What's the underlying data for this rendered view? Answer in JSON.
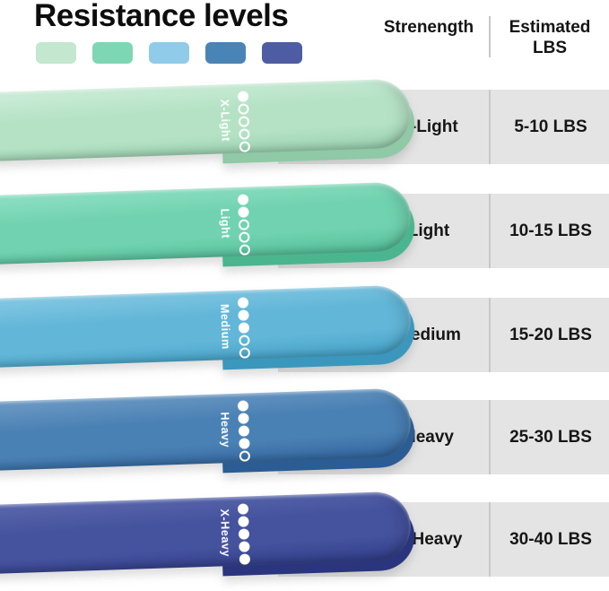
{
  "title": "Resistance levels",
  "palette_swatches": [
    {
      "name": "x-light",
      "color": "#c3e7cf"
    },
    {
      "name": "light",
      "color": "#7ed7b4"
    },
    {
      "name": "medium",
      "color": "#90cbe9"
    },
    {
      "name": "heavy",
      "color": "#4a84b7"
    },
    {
      "name": "x-heavy",
      "color": "#4e5da3"
    }
  ],
  "table": {
    "header": {
      "strength": "Strenength",
      "estimated": "Estimated LBS"
    },
    "rows": [
      {
        "strength": "X-Light",
        "lbs": "5-10 LBS",
        "dots_filled": 1,
        "dots_total": 5,
        "band": {
          "label": "X-Light",
          "light": "#cdeeda",
          "main": "#b5e2c5",
          "dark": "#99d1af",
          "under": "#8fc9a6"
        }
      },
      {
        "strength": "Light",
        "lbs": "10-15 LBS",
        "dots_filled": 2,
        "dots_total": 5,
        "band": {
          "label": "Light",
          "light": "#8fe0c4",
          "main": "#70d2b0",
          "dark": "#54bf9a",
          "under": "#4bb58f"
        }
      },
      {
        "strength": "Medium",
        "lbs": "15-20 LBS",
        "dots_filled": 3,
        "dots_total": 5,
        "band": {
          "label": "Medium",
          "light": "#85c9e3",
          "main": "#62b6d8",
          "dark": "#44a2c8",
          "under": "#3c97bd"
        }
      },
      {
        "strength": "Heavy",
        "lbs": "25-30 LBS",
        "dots_filled": 4,
        "dots_total": 5,
        "band": {
          "label": "Heavy",
          "light": "#6e9bc5",
          "main": "#4a81b4",
          "dark": "#32659f",
          "under": "#2b5c94"
        }
      },
      {
        "strength": "X-Heavy",
        "lbs": "30-40 LBS",
        "dots_filled": 5,
        "dots_total": 5,
        "band": {
          "label": "X-Heavy",
          "light": "#5a68ae",
          "main": "#45529d",
          "dark": "#303d88",
          "under": "#2a357d"
        }
      }
    ]
  },
  "colors": {
    "row_background": "#e4e4e4",
    "column_divider": "#c9c9c9",
    "title_text": "#0d0d0d"
  }
}
